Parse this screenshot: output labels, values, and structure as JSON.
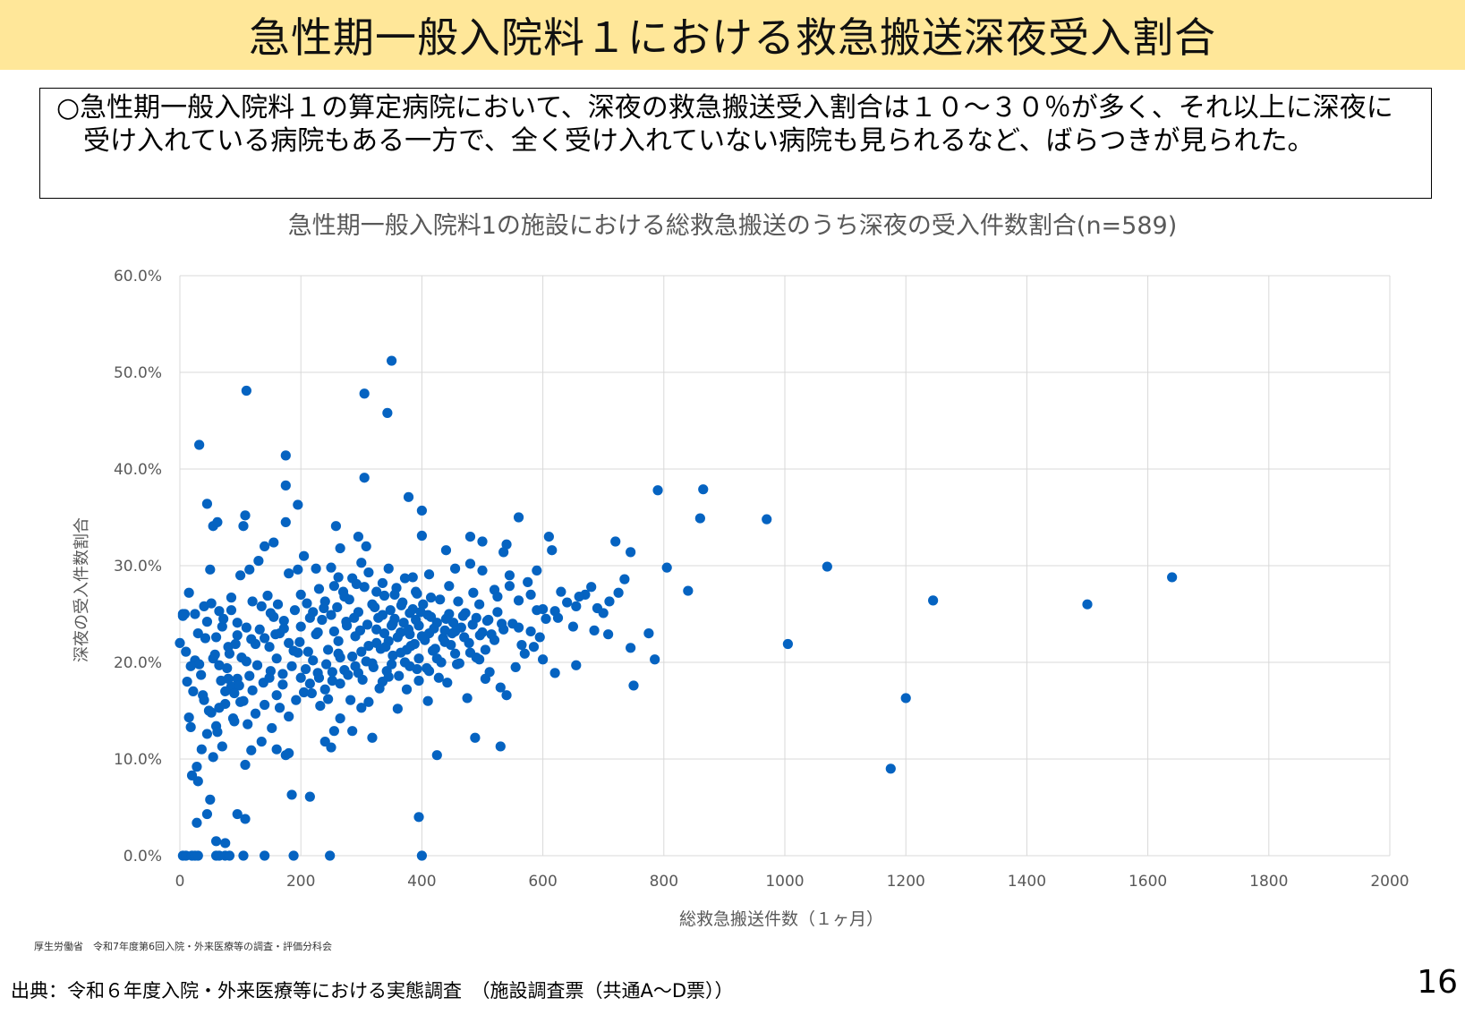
{
  "header": {
    "title": "急性期一般入院料１における救急搬送深夜受入割合"
  },
  "summary": {
    "text": "○急性期一般入院料１の算定病院において、深夜の救急搬送受入割合は１０～３０％が多く、それ以上に深夜に受け入れている病院もある一方で、全く受け入れていない病院も見られるなど、ばらつきが見られた。"
  },
  "chart_data": {
    "type": "scatter",
    "title": "急性期一般入院料1の施設における総救急搬送のうち深夜の受入件数割合(n=589)",
    "xlabel": "総救急搬送件数（１ヶ月）",
    "ylabel": "深夜の受入件数割合",
    "xlim": [
      0,
      2000
    ],
    "ylim": [
      0,
      60
    ],
    "x_ticks": [
      "0",
      "200",
      "400",
      "600",
      "800",
      "1000",
      "1200",
      "1400",
      "1600",
      "1800",
      "2000"
    ],
    "y_ticks": [
      "0.0%",
      "10.0%",
      "20.0%",
      "30.0%",
      "40.0%",
      "50.0%",
      "60.0%"
    ],
    "grid": true,
    "marker_color": "#0563c1",
    "points": [
      [
        350,
        51.2
      ],
      [
        110,
        48.1
      ],
      [
        305,
        47.8
      ],
      [
        343,
        45.8
      ],
      [
        32,
        42.5
      ],
      [
        175,
        41.4
      ],
      [
        378,
        37.1
      ],
      [
        305,
        39.1
      ],
      [
        175,
        38.3
      ],
      [
        195,
        36.3
      ],
      [
        45,
        36.4
      ],
      [
        400,
        35.7
      ],
      [
        108,
        35.2
      ],
      [
        105,
        34.1
      ],
      [
        175,
        34.5
      ],
      [
        258,
        34.1
      ],
      [
        55,
        34.1
      ],
      [
        62,
        34.5
      ],
      [
        400,
        33.1
      ],
      [
        295,
        33.0
      ],
      [
        308,
        32.0
      ],
      [
        265,
        31.8
      ],
      [
        155,
        32.4
      ],
      [
        140,
        32.0
      ],
      [
        480,
        33.0
      ],
      [
        500,
        32.5
      ],
      [
        560,
        35.0
      ],
      [
        540,
        32.2
      ],
      [
        440,
        31.6
      ],
      [
        535,
        31.4
      ],
      [
        720,
        32.5
      ],
      [
        745,
        31.4
      ],
      [
        790,
        37.8
      ],
      [
        865,
        37.9
      ],
      [
        860,
        34.9
      ],
      [
        970,
        34.8
      ],
      [
        1070,
        29.9
      ],
      [
        1005,
        21.9
      ],
      [
        1245,
        26.4
      ],
      [
        1500,
        26.0
      ],
      [
        1640,
        28.8
      ],
      [
        1200,
        16.3
      ],
      [
        1175,
        9.0
      ],
      [
        840,
        27.4
      ],
      [
        805,
        29.8
      ],
      [
        785,
        20.3
      ],
      [
        775,
        23.0
      ],
      [
        750,
        17.6
      ],
      [
        745,
        21.5
      ],
      [
        615,
        31.6
      ],
      [
        610,
        33.0
      ],
      [
        590,
        29.5
      ],
      [
        575,
        28.3
      ],
      [
        545,
        29.0
      ],
      [
        520,
        27.5
      ],
      [
        500,
        29.5
      ],
      [
        480,
        30.2
      ],
      [
        455,
        29.7
      ],
      [
        412,
        29.1
      ],
      [
        385,
        28.8
      ],
      [
        345,
        29.7
      ],
      [
        325,
        27.3
      ],
      [
        300,
        30.3
      ],
      [
        285,
        28.7
      ],
      [
        250,
        29.8
      ],
      [
        225,
        29.7
      ],
      [
        205,
        31.0
      ],
      [
        195,
        29.6
      ],
      [
        180,
        29.2
      ],
      [
        130,
        30.5
      ],
      [
        115,
        29.6
      ],
      [
        100,
        29.0
      ],
      [
        85,
        26.7
      ],
      [
        50,
        29.6
      ],
      [
        40,
        25.8
      ],
      [
        25,
        25.0
      ],
      [
        15,
        27.2
      ],
      [
        8,
        25.0
      ],
      [
        5,
        25.0
      ],
      [
        30,
        23.0
      ],
      [
        45,
        24.2
      ],
      [
        60,
        22.6
      ],
      [
        70,
        23.7
      ],
      [
        80,
        21.6
      ],
      [
        95,
        22.8
      ],
      [
        110,
        23.6
      ],
      [
        125,
        21.9
      ],
      [
        140,
        22.5
      ],
      [
        155,
        24.7
      ],
      [
        165,
        23.0
      ],
      [
        180,
        22.0
      ],
      [
        190,
        25.4
      ],
      [
        200,
        23.7
      ],
      [
        212,
        21.1
      ],
      [
        225,
        22.9
      ],
      [
        235,
        24.4
      ],
      [
        245,
        21.3
      ],
      [
        255,
        23.2
      ],
      [
        265,
        20.5
      ],
      [
        275,
        24.2
      ],
      [
        290,
        22.7
      ],
      [
        300,
        21.1
      ],
      [
        310,
        23.9
      ],
      [
        325,
        22.0
      ],
      [
        335,
        24.9
      ],
      [
        345,
        22.2
      ],
      [
        355,
        24.5
      ],
      [
        365,
        23.1
      ],
      [
        375,
        21.3
      ],
      [
        385,
        25.5
      ],
      [
        395,
        23.8
      ],
      [
        405,
        22.3
      ],
      [
        415,
        26.7
      ],
      [
        425,
        24.1
      ],
      [
        435,
        22.5
      ],
      [
        445,
        25.0
      ],
      [
        455,
        20.9
      ],
      [
        465,
        23.6
      ],
      [
        478,
        22.0
      ],
      [
        490,
        24.6
      ],
      [
        505,
        21.3
      ],
      [
        515,
        22.9
      ],
      [
        525,
        25.2
      ],
      [
        535,
        23.4
      ],
      [
        550,
        24.0
      ],
      [
        565,
        21.8
      ],
      [
        580,
        23.2
      ],
      [
        595,
        22.6
      ],
      [
        605,
        24.5
      ],
      [
        620,
        25.3
      ],
      [
        640,
        26.2
      ],
      [
        655,
        25.8
      ],
      [
        670,
        27.0
      ],
      [
        690,
        25.6
      ],
      [
        710,
        26.3
      ],
      [
        725,
        27.2
      ],
      [
        735,
        28.6
      ],
      [
        15,
        14.3
      ],
      [
        18,
        13.3
      ],
      [
        25,
        20.2
      ],
      [
        32,
        19.8
      ],
      [
        40,
        16.1
      ],
      [
        52,
        14.8
      ],
      [
        60,
        13.4
      ],
      [
        75,
        15.7
      ],
      [
        88,
        14.2
      ],
      [
        100,
        15.9
      ],
      [
        112,
        13.6
      ],
      [
        125,
        14.7
      ],
      [
        140,
        15.6
      ],
      [
        152,
        13.2
      ],
      [
        165,
        15.3
      ],
      [
        180,
        14.4
      ],
      [
        192,
        16.1
      ],
      [
        205,
        16.9
      ],
      [
        215,
        17.8
      ],
      [
        232,
        15.5
      ],
      [
        245,
        16.2
      ],
      [
        255,
        12.9
      ],
      [
        265,
        14.2
      ],
      [
        282,
        16.1
      ],
      [
        300,
        15.3
      ],
      [
        312,
        15.9
      ],
      [
        330,
        17.3
      ],
      [
        345,
        18.5
      ],
      [
        360,
        15.2
      ],
      [
        375,
        17.2
      ],
      [
        392,
        19.3
      ],
      [
        410,
        16.0
      ],
      [
        428,
        18.4
      ],
      [
        442,
        17.9
      ],
      [
        458,
        19.8
      ],
      [
        475,
        16.3
      ],
      [
        490,
        20.5
      ],
      [
        505,
        18.3
      ],
      [
        530,
        17.4
      ],
      [
        540,
        16.6
      ],
      [
        555,
        19.5
      ],
      [
        570,
        20.9
      ],
      [
        585,
        21.6
      ],
      [
        600,
        20.3
      ],
      [
        620,
        18.9
      ],
      [
        655,
        19.7
      ],
      [
        120,
        17.1
      ],
      [
        62,
        12.8
      ],
      [
        45,
        12.6
      ],
      [
        28,
        9.2
      ],
      [
        36,
        11.0
      ],
      [
        55,
        10.2
      ],
      [
        70,
        11.3
      ],
      [
        90,
        13.9
      ],
      [
        108,
        9.4
      ],
      [
        118,
        10.9
      ],
      [
        135,
        11.8
      ],
      [
        160,
        11.0
      ],
      [
        175,
        10.4
      ],
      [
        180,
        10.6
      ],
      [
        240,
        11.8
      ],
      [
        250,
        11.2
      ],
      [
        285,
        12.9
      ],
      [
        318,
        12.2
      ],
      [
        425,
        10.4
      ],
      [
        488,
        12.2
      ],
      [
        530,
        11.3
      ],
      [
        20,
        8.3
      ],
      [
        30,
        7.7
      ],
      [
        50,
        5.8
      ],
      [
        45,
        4.3
      ],
      [
        28,
        3.4
      ],
      [
        95,
        4.3
      ],
      [
        108,
        3.8
      ],
      [
        185,
        6.3
      ],
      [
        215,
        6.1
      ],
      [
        395,
        4.0
      ],
      [
        60,
        1.5
      ],
      [
        75,
        1.3
      ],
      [
        5,
        0.0
      ],
      [
        10,
        0.0
      ],
      [
        20,
        0.0
      ],
      [
        25,
        0.0
      ],
      [
        60,
        0.0
      ],
      [
        75,
        0.0
      ],
      [
        82,
        0.0
      ],
      [
        105,
        0.0
      ],
      [
        140,
        0.0
      ],
      [
        188,
        0.0
      ],
      [
        248,
        0.0
      ],
      [
        400,
        0.0
      ],
      [
        30,
        0.0
      ],
      [
        65,
        0.0
      ],
      [
        200,
        27.0
      ],
      [
        210,
        26.1
      ],
      [
        220,
        25.2
      ],
      [
        230,
        27.6
      ],
      [
        240,
        26.3
      ],
      [
        260,
        25.7
      ],
      [
        270,
        27.3
      ],
      [
        280,
        26.5
      ],
      [
        295,
        25.2
      ],
      [
        305,
        27.8
      ],
      [
        318,
        26.0
      ],
      [
        328,
        24.6
      ],
      [
        338,
        26.9
      ],
      [
        348,
        25.4
      ],
      [
        358,
        27.7
      ],
      [
        368,
        26.2
      ],
      [
        380,
        25.1
      ],
      [
        390,
        27.3
      ],
      [
        402,
        26.0
      ],
      [
        415,
        24.7
      ],
      [
        430,
        26.5
      ],
      [
        445,
        27.9
      ],
      [
        460,
        26.3
      ],
      [
        472,
        25.1
      ],
      [
        485,
        27.2
      ],
      [
        495,
        26.0
      ],
      [
        510,
        24.4
      ],
      [
        525,
        26.8
      ],
      [
        545,
        27.9
      ],
      [
        560,
        26.4
      ],
      [
        580,
        27.0
      ],
      [
        600,
        25.5
      ],
      [
        630,
        27.3
      ],
      [
        660,
        26.8
      ],
      [
        680,
        27.8
      ],
      [
        700,
        25.1
      ],
      [
        150,
        19.1
      ],
      [
        160,
        20.4
      ],
      [
        170,
        18.8
      ],
      [
        185,
        19.6
      ],
      [
        195,
        21.0
      ],
      [
        208,
        19.3
      ],
      [
        220,
        20.2
      ],
      [
        230,
        18.4
      ],
      [
        242,
        19.8
      ],
      [
        252,
        18.1
      ],
      [
        262,
        20.9
      ],
      [
        272,
        19.2
      ],
      [
        285,
        20.6
      ],
      [
        295,
        18.9
      ],
      [
        308,
        20.1
      ],
      [
        320,
        19.5
      ],
      [
        332,
        21.4
      ],
      [
        342,
        19.1
      ],
      [
        352,
        20.7
      ],
      [
        362,
        18.6
      ],
      [
        372,
        20.0
      ],
      [
        382,
        21.7
      ],
      [
        395,
        20.4
      ],
      [
        408,
        19.4
      ],
      [
        418,
        21.2
      ],
      [
        432,
        20.0
      ],
      [
        448,
        21.8
      ],
      [
        462,
        19.9
      ],
      [
        480,
        21.0
      ],
      [
        495,
        20.3
      ],
      [
        512,
        19.0
      ],
      [
        0,
        22.0
      ],
      [
        5,
        24.8
      ],
      [
        12,
        18.0
      ],
      [
        22,
        17.0
      ],
      [
        35,
        18.7
      ],
      [
        42,
        22.5
      ],
      [
        55,
        20.4
      ],
      [
        68,
        18.1
      ],
      [
        78,
        19.4
      ],
      [
        85,
        17.5
      ],
      [
        95,
        18.3
      ],
      [
        102,
        20.5
      ],
      [
        115,
        18.6
      ],
      [
        128,
        19.7
      ],
      [
        138,
        17.9
      ],
      [
        148,
        18.4
      ],
      [
        160,
        16.6
      ],
      [
        170,
        17.7
      ],
      [
        255,
        27.9
      ],
      [
        262,
        28.8
      ],
      [
        272,
        26.8
      ],
      [
        292,
        28.1
      ],
      [
        312,
        29.3
      ],
      [
        335,
        28.2
      ],
      [
        355,
        27.0
      ],
      [
        372,
        28.7
      ],
      [
        392,
        27.1
      ],
      [
        150,
        25.1
      ],
      [
        162,
        26.0
      ],
      [
        172,
        24.3
      ],
      [
        85,
        25.4
      ],
      [
        95,
        24.1
      ],
      [
        120,
        26.3
      ],
      [
        135,
        25.8
      ],
      [
        145,
        26.9
      ],
      [
        52,
        26.1
      ],
      [
        65,
        25.3
      ],
      [
        72,
        24.5
      ],
      [
        58,
        20.8
      ],
      [
        65,
        19.7
      ],
      [
        82,
        20.9
      ],
      [
        92,
        21.9
      ],
      [
        118,
        22.4
      ],
      [
        132,
        23.4
      ],
      [
        148,
        21.6
      ],
      [
        158,
        22.9
      ],
      [
        172,
        23.5
      ],
      [
        188,
        21.2
      ],
      [
        198,
        22.1
      ],
      [
        325,
        23.4
      ],
      [
        340,
        21.6
      ],
      [
        350,
        23.8
      ],
      [
        360,
        22.6
      ],
      [
        370,
        24.1
      ],
      [
        380,
        22.9
      ],
      [
        390,
        24.4
      ],
      [
        400,
        22.7
      ],
      [
        410,
        24.9
      ],
      [
        420,
        23.5
      ],
      [
        440,
        24.5
      ],
      [
        450,
        23.0
      ],
      [
        468,
        24.8
      ],
      [
        500,
        23.1
      ],
      [
        520,
        22.3
      ],
      [
        532,
        24.0
      ],
      [
        560,
        23.6
      ],
      [
        590,
        25.4
      ],
      [
        625,
        24.6
      ],
      [
        650,
        23.7
      ],
      [
        685,
        23.3
      ],
      [
        708,
        22.9
      ],
      [
        215,
        24.6
      ],
      [
        228,
        23.1
      ],
      [
        238,
        25.6
      ],
      [
        250,
        24.9
      ],
      [
        262,
        22.2
      ],
      [
        276,
        23.8
      ],
      [
        288,
        24.6
      ],
      [
        298,
        23.3
      ],
      [
        312,
        21.7
      ],
      [
        322,
        25.7
      ],
      [
        338,
        23.0
      ],
      [
        352,
        24.0
      ],
      [
        366,
        25.9
      ],
      [
        378,
        23.4
      ],
      [
        388,
        21.9
      ],
      [
        398,
        25.2
      ],
      [
        412,
        23.0
      ],
      [
        422,
        21.4
      ],
      [
        438,
        23.3
      ],
      [
        452,
        24.1
      ],
      [
        470,
        22.6
      ],
      [
        484,
        23.9
      ],
      [
        496,
        22.8
      ],
      [
        508,
        24.3
      ],
      [
        200,
        18.4
      ],
      [
        218,
        16.8
      ],
      [
        228,
        18.9
      ],
      [
        240,
        17.2
      ],
      [
        252,
        19.0
      ],
      [
        265,
        17.8
      ],
      [
        278,
        18.7
      ],
      [
        290,
        19.6
      ],
      [
        302,
        18.2
      ],
      [
        318,
        19.9
      ],
      [
        335,
        18.0
      ],
      [
        350,
        19.8
      ],
      [
        365,
        21.0
      ],
      [
        380,
        19.6
      ],
      [
        395,
        18.1
      ],
      [
        412,
        19.1
      ],
      [
        425,
        20.4
      ],
      [
        438,
        22.1
      ],
      [
        455,
        23.2
      ],
      [
        110,
        20.1
      ],
      [
        105,
        16.0
      ],
      [
        98,
        17.6
      ],
      [
        90,
        16.8
      ],
      [
        80,
        18.3
      ],
      [
        75,
        17.0
      ],
      [
        65,
        15.3
      ],
      [
        48,
        15.0
      ],
      [
        38,
        16.6
      ],
      [
        18,
        19.6
      ],
      [
        10,
        21.1
      ]
    ]
  },
  "footer": {
    "org_note": "厚生労働省　令和7年度第6回入院・外来医療等の調査・評価分科会",
    "source": "出典：令和６年度入院・外来医療等における実態調査　（施設調査票（共通A～D票））",
    "page_number": "16"
  }
}
